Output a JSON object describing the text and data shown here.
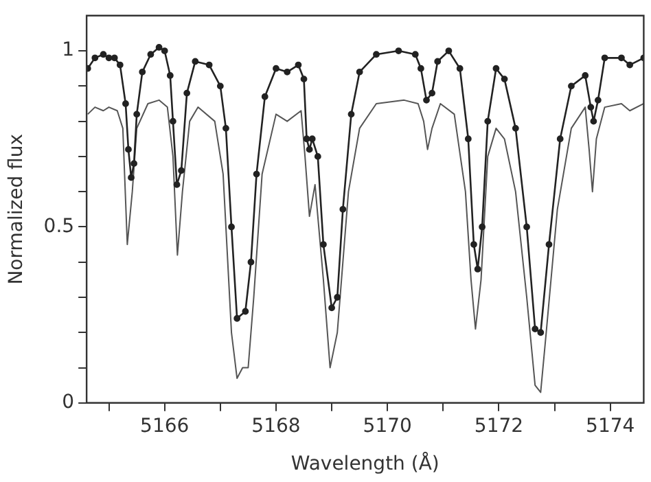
{
  "chart_data": {
    "type": "line",
    "xlabel": "Wavelength (Å)",
    "ylabel": "Normalized flux",
    "xlim": [
      5164.6,
      5174.6
    ],
    "ylim": [
      0,
      1.1
    ],
    "xticks": [
      {
        "value": 5165,
        "label": null
      },
      5166,
      {
        "value": 5167,
        "label": null
      },
      5168,
      {
        "value": 5169,
        "label": null
      },
      5170,
      {
        "value": 5171,
        "label": null
      },
      5172,
      {
        "value": 5173,
        "label": null
      },
      5174
    ],
    "yticks": [
      0,
      {
        "value": 0.1,
        "label": null
      },
      {
        "value": 0.2,
        "label": null
      },
      {
        "value": 0.3,
        "label": null
      },
      {
        "value": 0.4,
        "label": null
      },
      0.5,
      {
        "value": 0.6,
        "label": null
      },
      {
        "value": 0.7,
        "label": null
      },
      {
        "value": 0.8,
        "label": null
      },
      {
        "value": 0.9,
        "label": null
      },
      1
    ],
    "grid": false,
    "legend": false,
    "series": [
      {
        "color": "#222222",
        "marker": "circle",
        "line_style": "solid",
        "x": [
          5164.62,
          5164.75,
          5164.9,
          5165.0,
          5165.1,
          5165.2,
          5165.3,
          5165.35,
          5165.4,
          5165.45,
          5165.5,
          5165.6,
          5165.75,
          5165.9,
          5166.0,
          5166.1,
          5166.15,
          5166.22,
          5166.3,
          5166.4,
          5166.55,
          5166.8,
          5167.0,
          5167.1,
          5167.2,
          5167.3,
          5167.45,
          5167.55,
          5167.65,
          5167.8,
          5168.0,
          5168.2,
          5168.4,
          5168.5,
          5168.55,
          5168.6,
          5168.65,
          5168.75,
          5168.85,
          5169.0,
          5169.1,
          5169.2,
          5169.35,
          5169.5,
          5169.8,
          5170.2,
          5170.5,
          5170.6,
          5170.7,
          5170.8,
          5170.9,
          5171.1,
          5171.3,
          5171.45,
          5171.55,
          5171.62,
          5171.7,
          5171.8,
          5171.95,
          5172.1,
          5172.3,
          5172.5,
          5172.65,
          5172.75,
          5172.9,
          5173.1,
          5173.3,
          5173.55,
          5173.65,
          5173.7,
          5173.78,
          5173.9,
          5174.2,
          5174.35,
          5174.6
        ],
        "values": [
          0.95,
          0.98,
          0.99,
          0.98,
          0.98,
          0.96,
          0.85,
          0.72,
          0.64,
          0.68,
          0.82,
          0.94,
          0.99,
          1.01,
          1.0,
          0.93,
          0.8,
          0.62,
          0.66,
          0.88,
          0.97,
          0.96,
          0.9,
          0.78,
          0.5,
          0.24,
          0.26,
          0.4,
          0.65,
          0.87,
          0.95,
          0.94,
          0.96,
          0.92,
          0.75,
          0.72,
          0.75,
          0.7,
          0.45,
          0.27,
          0.3,
          0.55,
          0.82,
          0.94,
          0.99,
          1.0,
          0.99,
          0.95,
          0.86,
          0.88,
          0.97,
          1.0,
          0.95,
          0.75,
          0.45,
          0.38,
          0.5,
          0.8,
          0.95,
          0.92,
          0.78,
          0.5,
          0.21,
          0.2,
          0.45,
          0.75,
          0.9,
          0.93,
          0.84,
          0.8,
          0.86,
          0.98,
          0.98,
          0.96,
          0.98
        ]
      },
      {
        "color": "#555555",
        "marker": "none",
        "line_style": "solid",
        "x": [
          5164.62,
          5164.75,
          5164.9,
          5165.0,
          5165.15,
          5165.25,
          5165.33,
          5165.42,
          5165.5,
          5165.7,
          5165.9,
          5166.05,
          5166.15,
          5166.23,
          5166.32,
          5166.45,
          5166.6,
          5166.9,
          5167.05,
          5167.2,
          5167.3,
          5167.4,
          5167.5,
          5167.6,
          5167.75,
          5168.0,
          5168.2,
          5168.45,
          5168.52,
          5168.6,
          5168.7,
          5168.85,
          5168.97,
          5169.1,
          5169.3,
          5169.5,
          5169.8,
          5170.3,
          5170.55,
          5170.65,
          5170.72,
          5170.8,
          5170.95,
          5171.2,
          5171.4,
          5171.5,
          5171.58,
          5171.68,
          5171.8,
          5171.95,
          5172.1,
          5172.3,
          5172.5,
          5172.65,
          5172.75,
          5172.85,
          5173.05,
          5173.3,
          5173.55,
          5173.62,
          5173.68,
          5173.75,
          5173.9,
          5174.2,
          5174.35,
          5174.6
        ],
        "values": [
          0.82,
          0.84,
          0.83,
          0.84,
          0.83,
          0.78,
          0.45,
          0.6,
          0.78,
          0.85,
          0.86,
          0.84,
          0.7,
          0.42,
          0.6,
          0.8,
          0.84,
          0.8,
          0.65,
          0.2,
          0.07,
          0.1,
          0.1,
          0.3,
          0.65,
          0.82,
          0.8,
          0.83,
          0.7,
          0.53,
          0.62,
          0.35,
          0.1,
          0.2,
          0.6,
          0.78,
          0.85,
          0.86,
          0.85,
          0.8,
          0.72,
          0.78,
          0.85,
          0.82,
          0.6,
          0.35,
          0.21,
          0.35,
          0.7,
          0.78,
          0.75,
          0.6,
          0.3,
          0.05,
          0.03,
          0.2,
          0.55,
          0.78,
          0.84,
          0.72,
          0.6,
          0.75,
          0.84,
          0.85,
          0.83,
          0.85
        ]
      }
    ]
  }
}
